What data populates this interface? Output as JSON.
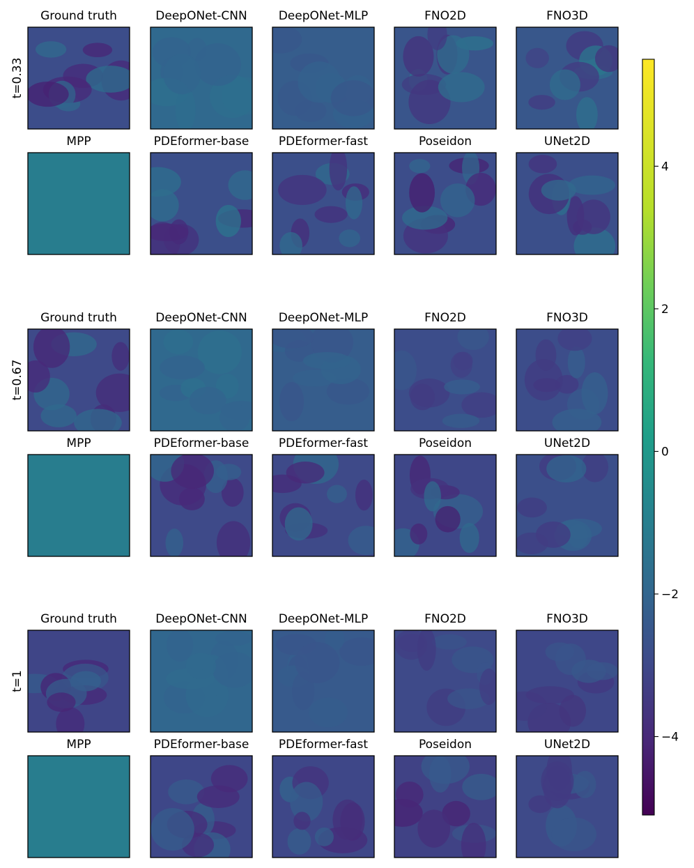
{
  "chart_data": {
    "type": "heatmap",
    "colormap": "viridis",
    "colorbar": {
      "range": [
        -5.1,
        5.5
      ],
      "ticks": [
        4,
        2,
        0,
        -2,
        -4
      ],
      "tick_labels": [
        "4",
        "2",
        "0",
        "−2",
        "−4"
      ]
    },
    "models": [
      "Ground truth",
      "DeepONet-CNN",
      "DeepONet-MLP",
      "FNO2D",
      "FNO3D",
      "MPP",
      "PDEformer-base",
      "PDEformer-fast",
      "Poseidon",
      "UNet2D"
    ],
    "time_rows": [
      {
        "label": "t=0.33",
        "panels": [
          {
            "name": "Ground truth",
            "mean": -2.6,
            "amp": 1.6
          },
          {
            "name": "DeepONet-CNN",
            "mean": -1.5,
            "amp": 0.3
          },
          {
            "name": "DeepONet-MLP",
            "mean": -2.0,
            "amp": 0.25
          },
          {
            "name": "FNO2D",
            "mean": -2.3,
            "amp": 1.4
          },
          {
            "name": "FNO3D",
            "mean": -2.2,
            "amp": 1.4
          },
          {
            "name": "MPP",
            "mean": -0.6,
            "amp": 0.0
          },
          {
            "name": "PDEformer-base",
            "mean": -2.5,
            "amp": 1.5
          },
          {
            "name": "PDEformer-fast",
            "mean": -2.5,
            "amp": 1.5
          },
          {
            "name": "Poseidon",
            "mean": -2.6,
            "amp": 1.7
          },
          {
            "name": "UNet2D",
            "mean": -2.5,
            "amp": 1.4
          }
        ]
      },
      {
        "label": "t=0.67",
        "panels": [
          {
            "name": "Ground truth",
            "mean": -2.7,
            "amp": 1.3
          },
          {
            "name": "DeepONet-CNN",
            "mean": -1.5,
            "amp": 0.3
          },
          {
            "name": "DeepONet-MLP",
            "mean": -2.0,
            "amp": 0.3
          },
          {
            "name": "FNO2D",
            "mean": -2.6,
            "amp": 0.7
          },
          {
            "name": "FNO3D",
            "mean": -2.6,
            "amp": 0.8
          },
          {
            "name": "MPP",
            "mean": -0.6,
            "amp": 0.0
          },
          {
            "name": "PDEformer-base",
            "mean": -2.7,
            "amp": 1.3
          },
          {
            "name": "PDEformer-fast",
            "mean": -2.7,
            "amp": 1.3
          },
          {
            "name": "Poseidon",
            "mean": -2.8,
            "amp": 1.4
          },
          {
            "name": "UNet2D",
            "mean": -2.5,
            "amp": 0.9
          }
        ]
      },
      {
        "label": "t=1",
        "panels": [
          {
            "name": "Ground truth",
            "mean": -2.9,
            "amp": 1.2
          },
          {
            "name": "DeepONet-CNN",
            "mean": -1.6,
            "amp": 0.2
          },
          {
            "name": "DeepONet-MLP",
            "mean": -2.1,
            "amp": 0.2
          },
          {
            "name": "FNO2D",
            "mean": -2.7,
            "amp": 0.6
          },
          {
            "name": "FNO3D",
            "mean": -2.8,
            "amp": 0.7
          },
          {
            "name": "MPP",
            "mean": -0.6,
            "amp": 0.0
          },
          {
            "name": "PDEformer-base",
            "mean": -2.8,
            "amp": 1.1
          },
          {
            "name": "PDEformer-fast",
            "mean": -2.8,
            "amp": 1.1
          },
          {
            "name": "Poseidon",
            "mean": -3.0,
            "amp": 1.2
          },
          {
            "name": "UNet2D",
            "mean": -2.7,
            "amp": 0.7
          }
        ]
      }
    ]
  }
}
